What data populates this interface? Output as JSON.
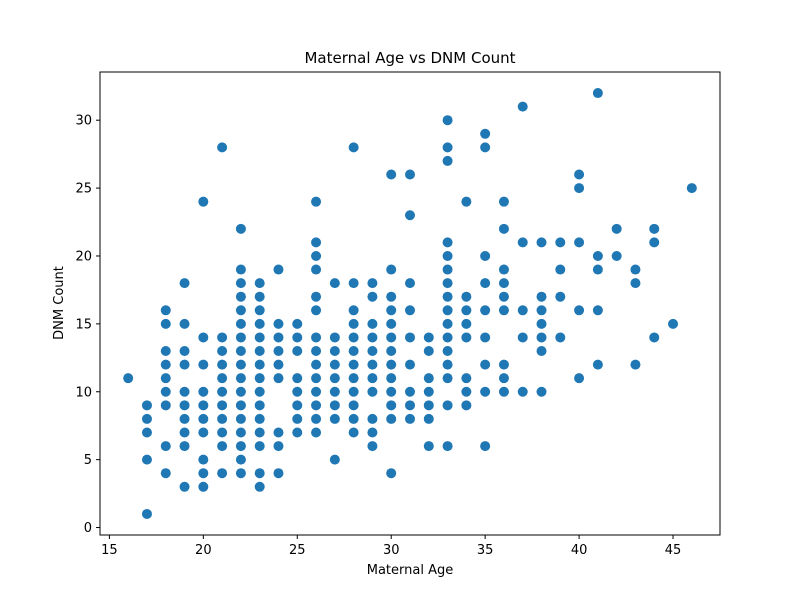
{
  "chart_data": {
    "type": "scatter",
    "title": "Maternal Age vs DNM Count",
    "xlabel": "Maternal Age",
    "ylabel": "DNM Count",
    "xlim": [
      14.5,
      47.5
    ],
    "ylim": [
      -0.55,
      33.55
    ],
    "xticks": [
      15,
      20,
      25,
      30,
      35,
      40,
      45
    ],
    "yticks": [
      0,
      5,
      10,
      15,
      20,
      25,
      30
    ],
    "grid": false,
    "marker_color": "#1f77b4",
    "points": [
      [
        16,
        11
      ],
      [
        17,
        1
      ],
      [
        17,
        5
      ],
      [
        17,
        7
      ],
      [
        17,
        8
      ],
      [
        17,
        9
      ],
      [
        18,
        4
      ],
      [
        18,
        6
      ],
      [
        18,
        9
      ],
      [
        18,
        10
      ],
      [
        18,
        11
      ],
      [
        18,
        12
      ],
      [
        18,
        13
      ],
      [
        18,
        15
      ],
      [
        18,
        16
      ],
      [
        19,
        3
      ],
      [
        19,
        6
      ],
      [
        19,
        7
      ],
      [
        19,
        8
      ],
      [
        19,
        9
      ],
      [
        19,
        10
      ],
      [
        19,
        12
      ],
      [
        19,
        13
      ],
      [
        19,
        15
      ],
      [
        19,
        18
      ],
      [
        20,
        3
      ],
      [
        20,
        4
      ],
      [
        20,
        5
      ],
      [
        20,
        7
      ],
      [
        20,
        8
      ],
      [
        20,
        9
      ],
      [
        20,
        10
      ],
      [
        20,
        12
      ],
      [
        20,
        14
      ],
      [
        20,
        24
      ],
      [
        21,
        4
      ],
      [
        21,
        6
      ],
      [
        21,
        7
      ],
      [
        21,
        8
      ],
      [
        21,
        9
      ],
      [
        21,
        10
      ],
      [
        21,
        11
      ],
      [
        21,
        12
      ],
      [
        21,
        13
      ],
      [
        21,
        14
      ],
      [
        21,
        28
      ],
      [
        22,
        4
      ],
      [
        22,
        5
      ],
      [
        22,
        6
      ],
      [
        22,
        7
      ],
      [
        22,
        8
      ],
      [
        22,
        9
      ],
      [
        22,
        10
      ],
      [
        22,
        11
      ],
      [
        22,
        12
      ],
      [
        22,
        13
      ],
      [
        22,
        14
      ],
      [
        22,
        15
      ],
      [
        22,
        16
      ],
      [
        22,
        17
      ],
      [
        22,
        18
      ],
      [
        22,
        19
      ],
      [
        22,
        22
      ],
      [
        23,
        3
      ],
      [
        23,
        4
      ],
      [
        23,
        6
      ],
      [
        23,
        7
      ],
      [
        23,
        8
      ],
      [
        23,
        9
      ],
      [
        23,
        10
      ],
      [
        23,
        11
      ],
      [
        23,
        12
      ],
      [
        23,
        13
      ],
      [
        23,
        14
      ],
      [
        23,
        15
      ],
      [
        23,
        16
      ],
      [
        23,
        17
      ],
      [
        23,
        18
      ],
      [
        24,
        4
      ],
      [
        24,
        6
      ],
      [
        24,
        7
      ],
      [
        24,
        11
      ],
      [
        24,
        12
      ],
      [
        24,
        13
      ],
      [
        24,
        14
      ],
      [
        24,
        15
      ],
      [
        24,
        19
      ],
      [
        25,
        7
      ],
      [
        25,
        8
      ],
      [
        25,
        9
      ],
      [
        25,
        10
      ],
      [
        25,
        11
      ],
      [
        25,
        13
      ],
      [
        25,
        14
      ],
      [
        25,
        15
      ],
      [
        26,
        7
      ],
      [
        26,
        8
      ],
      [
        26,
        9
      ],
      [
        26,
        10
      ],
      [
        26,
        11
      ],
      [
        26,
        12
      ],
      [
        26,
        13
      ],
      [
        26,
        14
      ],
      [
        26,
        16
      ],
      [
        26,
        17
      ],
      [
        26,
        19
      ],
      [
        26,
        20
      ],
      [
        26,
        21
      ],
      [
        26,
        24
      ],
      [
        27,
        5
      ],
      [
        27,
        8
      ],
      [
        27,
        9
      ],
      [
        27,
        10
      ],
      [
        27,
        11
      ],
      [
        27,
        12
      ],
      [
        27,
        13
      ],
      [
        27,
        14
      ],
      [
        27,
        18
      ],
      [
        28,
        7
      ],
      [
        28,
        8
      ],
      [
        28,
        9
      ],
      [
        28,
        10
      ],
      [
        28,
        11
      ],
      [
        28,
        12
      ],
      [
        28,
        13
      ],
      [
        28,
        14
      ],
      [
        28,
        15
      ],
      [
        28,
        16
      ],
      [
        28,
        18
      ],
      [
        28,
        28
      ],
      [
        29,
        6
      ],
      [
        29,
        7
      ],
      [
        29,
        8
      ],
      [
        29,
        10
      ],
      [
        29,
        11
      ],
      [
        29,
        12
      ],
      [
        29,
        13
      ],
      [
        29,
        14
      ],
      [
        29,
        15
      ],
      [
        29,
        17
      ],
      [
        29,
        18
      ],
      [
        30,
        4
      ],
      [
        30,
        8
      ],
      [
        30,
        9
      ],
      [
        30,
        10
      ],
      [
        30,
        11
      ],
      [
        30,
        12
      ],
      [
        30,
        13
      ],
      [
        30,
        14
      ],
      [
        30,
        15
      ],
      [
        30,
        16
      ],
      [
        30,
        17
      ],
      [
        30,
        19
      ],
      [
        30,
        26
      ],
      [
        31,
        8
      ],
      [
        31,
        9
      ],
      [
        31,
        10
      ],
      [
        31,
        12
      ],
      [
        31,
        14
      ],
      [
        31,
        16
      ],
      [
        31,
        18
      ],
      [
        31,
        23
      ],
      [
        31,
        26
      ],
      [
        32,
        6
      ],
      [
        32,
        8
      ],
      [
        32,
        9
      ],
      [
        32,
        10
      ],
      [
        32,
        11
      ],
      [
        32,
        13
      ],
      [
        32,
        14
      ],
      [
        33,
        6
      ],
      [
        33,
        9
      ],
      [
        33,
        11
      ],
      [
        33,
        12
      ],
      [
        33,
        13
      ],
      [
        33,
        14
      ],
      [
        33,
        15
      ],
      [
        33,
        16
      ],
      [
        33,
        17
      ],
      [
        33,
        18
      ],
      [
        33,
        19
      ],
      [
        33,
        20
      ],
      [
        33,
        21
      ],
      [
        33,
        27
      ],
      [
        33,
        28
      ],
      [
        33,
        30
      ],
      [
        34,
        9
      ],
      [
        34,
        10
      ],
      [
        34,
        11
      ],
      [
        34,
        14
      ],
      [
        34,
        15
      ],
      [
        34,
        16
      ],
      [
        34,
        17
      ],
      [
        34,
        24
      ],
      [
        35,
        6
      ],
      [
        35,
        10
      ],
      [
        35,
        12
      ],
      [
        35,
        14
      ],
      [
        35,
        16
      ],
      [
        35,
        18
      ],
      [
        35,
        20
      ],
      [
        35,
        28
      ],
      [
        35,
        29
      ],
      [
        36,
        10
      ],
      [
        36,
        11
      ],
      [
        36,
        12
      ],
      [
        36,
        16
      ],
      [
        36,
        17
      ],
      [
        36,
        18
      ],
      [
        36,
        19
      ],
      [
        36,
        22
      ],
      [
        36,
        24
      ],
      [
        37,
        10
      ],
      [
        37,
        14
      ],
      [
        37,
        16
      ],
      [
        37,
        21
      ],
      [
        37,
        31
      ],
      [
        38,
        10
      ],
      [
        38,
        13
      ],
      [
        38,
        14
      ],
      [
        38,
        15
      ],
      [
        38,
        16
      ],
      [
        38,
        17
      ],
      [
        38,
        21
      ],
      [
        39,
        14
      ],
      [
        39,
        17
      ],
      [
        39,
        19
      ],
      [
        39,
        21
      ],
      [
        40,
        11
      ],
      [
        40,
        16
      ],
      [
        40,
        21
      ],
      [
        40,
        25
      ],
      [
        40,
        26
      ],
      [
        41,
        12
      ],
      [
        41,
        16
      ],
      [
        41,
        19
      ],
      [
        41,
        20
      ],
      [
        41,
        32
      ],
      [
        42,
        20
      ],
      [
        42,
        22
      ],
      [
        43,
        12
      ],
      [
        43,
        18
      ],
      [
        43,
        19
      ],
      [
        44,
        14
      ],
      [
        44,
        21
      ],
      [
        44,
        22
      ],
      [
        45,
        15
      ],
      [
        46,
        25
      ]
    ]
  }
}
